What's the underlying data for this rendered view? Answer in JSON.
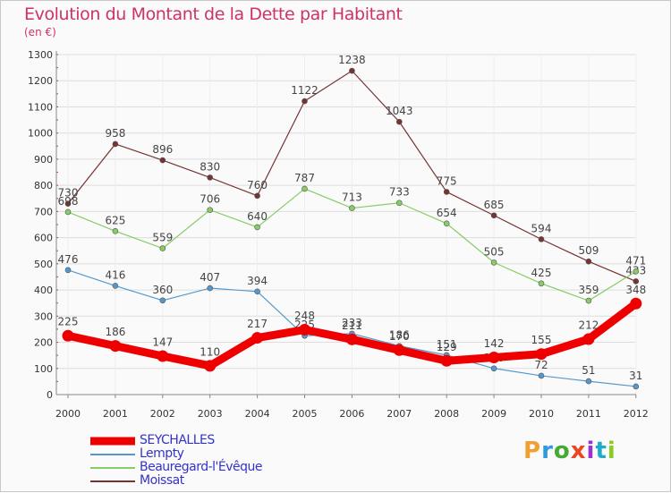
{
  "title": "Evolution du Montant de la Dette par Habitant",
  "unit_label": "(en €)",
  "logo_text": "Proxiti",
  "logo_colors": [
    "#f0a030",
    "#3399dd",
    "#44aa33",
    "#ee4422",
    "#9933cc",
    "#22aacc",
    "#88cc22"
  ],
  "chart_data": {
    "type": "line",
    "title": "Evolution du Montant de la Dette par Habitant",
    "ylabel": "(en €)",
    "xlabel": "",
    "x": [
      "2000",
      "2001",
      "2002",
      "2003",
      "2004",
      "2005",
      "2006",
      "2007",
      "2008",
      "2009",
      "2010",
      "2011",
      "2012"
    ],
    "ylim": [
      0,
      1300
    ],
    "yticks": [
      0,
      100,
      200,
      300,
      400,
      500,
      600,
      700,
      800,
      900,
      1000,
      1100,
      1200,
      1300
    ],
    "grid": "horizontal",
    "legend_position": "bottom-left",
    "series": [
      {
        "name": "SEYCHALLES",
        "color": "#ee0000",
        "values": [
          225,
          186,
          147,
          110,
          217,
          248,
          211,
          170,
          129,
          142,
          155,
          212,
          348
        ]
      },
      {
        "name": "Lempty",
        "color": "#5599cc",
        "values": [
          476,
          416,
          360,
          407,
          394,
          225,
          233,
          186,
          151,
          100,
          72,
          51,
          31
        ]
      },
      {
        "name": "Beauregard-l'Évêque",
        "color": "#88cc66",
        "values": [
          698,
          625,
          559,
          706,
          640,
          787,
          713,
          733,
          654,
          505,
          425,
          359,
          471
        ]
      },
      {
        "name": "Moissat",
        "color": "#773333",
        "values": [
          730,
          958,
          896,
          830,
          760,
          1122,
          1238,
          1043,
          775,
          685,
          594,
          509,
          433
        ]
      }
    ]
  }
}
